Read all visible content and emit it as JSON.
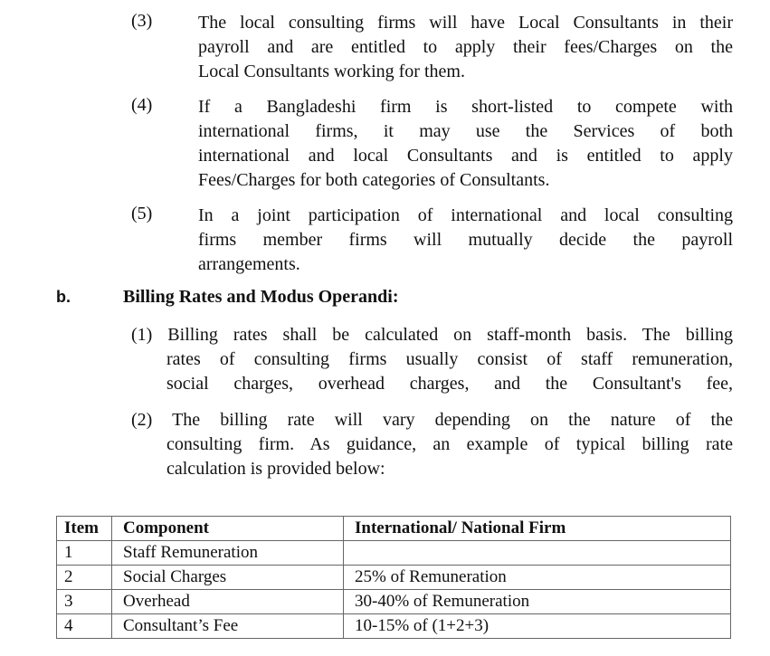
{
  "items": [
    {
      "label": "(3)",
      "lines": [
        "The local consulting firms will have Local Consultants in their",
        "payroll and are entitled to apply their fees/Charges on the",
        "Local Consultants working for them."
      ]
    },
    {
      "label": "(4)",
      "lines": [
        "If a Bangladeshi firm is short-listed to compete with",
        "international firms, it may use the Services of both",
        "international and local Consultants and is entitled to apply",
        "Fees/Charges for both categories of Consultants."
      ]
    },
    {
      "label": "(5)",
      "lines": [
        "In a joint participation of international and local consulting",
        "firms member firms will mutually decide the payroll",
        "arrangements."
      ]
    }
  ],
  "section": {
    "label": "b.",
    "title": "Billing Rates and Modus Operandi:"
  },
  "sub": [
    {
      "lines": [
        "(1) Billing rates shall be calculated on staff-month basis. The billing",
        "rates of consulting firms usually consist of staff remuneration,",
        "social charges, overhead charges, and the Consultant's fee,"
      ]
    },
    {
      "lines": [
        "(2) The billing rate will vary depending on the nature of the",
        "consulting firm. As guidance, an example of typical billing rate",
        "calculation is provided below:"
      ]
    }
  ],
  "table": {
    "headers": [
      "Item",
      "Component",
      "International/ National Firm"
    ],
    "rows": [
      [
        "1",
        "Staff Remuneration",
        ""
      ],
      [
        "2",
        "Social Charges",
        "25% of Remuneration"
      ],
      [
        "3",
        "Overhead",
        "30-40% of Remuneration"
      ],
      [
        "4",
        "Consultant’s Fee",
        "10-15% of (1+2+3)"
      ]
    ]
  }
}
